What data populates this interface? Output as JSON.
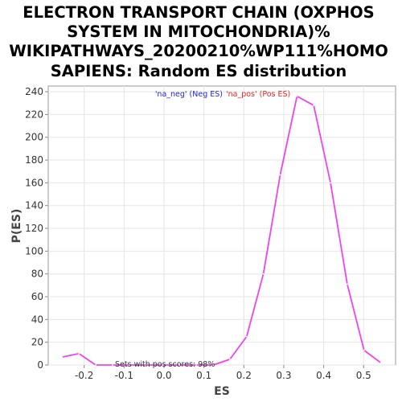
{
  "chart_data": {
    "type": "line",
    "title_lines": [
      "ELECTRON TRANSPORT CHAIN (OXPHOS",
      "SYSTEM IN MITOCHONDRIA)%",
      "WIKIPATHWAYS_20200210%WP111%HOMO",
      "SAPIENS: Random ES distribution"
    ],
    "xlabel": "ES",
    "ylabel": "P(ES)",
    "xlim": [
      -0.29,
      0.58
    ],
    "ylim": [
      0,
      245
    ],
    "x_ticks": [
      "-0.2",
      "-0.1",
      "0.0",
      "0.1",
      "0.2",
      "0.3",
      "0.4",
      "0.5"
    ],
    "y_ticks": [
      "0",
      "20",
      "40",
      "60",
      "80",
      "100",
      "120",
      "140",
      "160",
      "180",
      "200",
      "220",
      "240"
    ],
    "legend": [
      {
        "label": "'na_neg' (Neg ES)",
        "color": "#2222ee"
      },
      {
        "label": "'na_pos' (Pos ES)",
        "color": "#ee2222"
      }
    ],
    "annotation": "Sets with pos scores: 98%",
    "series": [
      {
        "color": "#ee44ee",
        "x": [
          -0.255,
          -0.213,
          -0.171,
          -0.129,
          -0.087,
          -0.045,
          -0.003,
          0.039,
          0.081,
          0.123,
          0.165,
          0.207,
          0.249,
          0.291,
          0.333,
          0.375,
          0.417,
          0.459,
          0.501,
          0.543
        ],
        "y": [
          7,
          10,
          0,
          0,
          0,
          0,
          0,
          0,
          0,
          0,
          5,
          25,
          80,
          167,
          236,
          228,
          160,
          71,
          13,
          2
        ]
      }
    ]
  }
}
